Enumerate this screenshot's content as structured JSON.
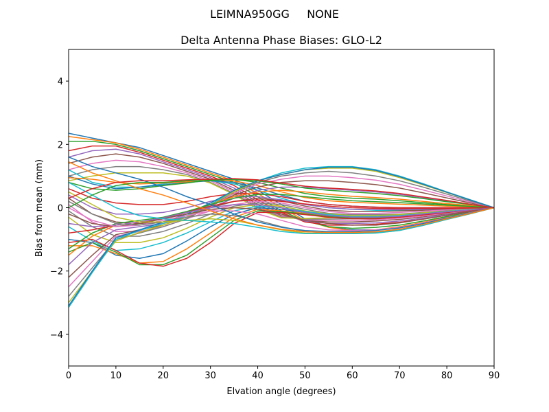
{
  "figure": {
    "suptitle": "LEIMNA950GG     NONE"
  },
  "chart_data": {
    "type": "line",
    "title": "Delta Antenna Phase Biases: GLO-L2",
    "xlabel": "Elvation angle (degrees)",
    "ylabel": "Bias from mean (mm)",
    "xlim": [
      0,
      90
    ],
    "ylim": [
      -5,
      5
    ],
    "xticks": [
      0,
      10,
      20,
      30,
      40,
      50,
      60,
      70,
      80,
      90
    ],
    "yticks": [
      -4,
      -2,
      0,
      2,
      4
    ],
    "xtick_labels": [
      "0",
      "10",
      "20",
      "30",
      "40",
      "50",
      "60",
      "70",
      "80",
      "90"
    ],
    "ytick_labels": [
      "−4",
      "−2",
      "0",
      "2",
      "4"
    ],
    "grid": false,
    "legend": "none",
    "x": [
      0,
      5,
      10,
      15,
      20,
      25,
      30,
      35,
      40,
      45,
      50,
      55,
      60,
      65,
      70,
      75,
      80,
      85,
      90
    ],
    "series": [
      {
        "values": [
          2.35,
          2.2,
          2.05,
          1.9,
          1.65,
          1.4,
          1.15,
          0.9,
          0.55,
          0.1,
          -0.35,
          -0.6,
          -0.7,
          -0.7,
          -0.62,
          -0.48,
          -0.32,
          -0.16,
          0
        ]
      },
      {
        "values": [
          2.25,
          2.15,
          2.05,
          1.85,
          1.6,
          1.35,
          1.1,
          0.85,
          0.45,
          0.0,
          -0.4,
          -0.62,
          -0.72,
          -0.7,
          -0.6,
          -0.46,
          -0.3,
          -0.15,
          0
        ]
      },
      {
        "values": [
          2.1,
          2.1,
          2.0,
          1.8,
          1.55,
          1.3,
          1.05,
          0.8,
          0.35,
          -0.1,
          -0.42,
          -0.6,
          -0.65,
          -0.62,
          -0.55,
          -0.42,
          -0.28,
          -0.14,
          0
        ]
      },
      {
        "values": [
          1.8,
          1.95,
          1.95,
          1.75,
          1.5,
          1.25,
          1.0,
          0.7,
          0.25,
          -0.15,
          -0.45,
          -0.55,
          -0.55,
          -0.52,
          -0.46,
          -0.36,
          -0.24,
          -0.12,
          0
        ]
      },
      {
        "values": [
          1.6,
          1.8,
          1.85,
          1.7,
          1.45,
          1.2,
          0.95,
          0.62,
          0.18,
          -0.2,
          -0.42,
          -0.5,
          -0.5,
          -0.48,
          -0.42,
          -0.33,
          -0.22,
          -0.11,
          0
        ]
      },
      {
        "values": [
          1.4,
          1.6,
          1.7,
          1.6,
          1.4,
          1.15,
          0.9,
          0.55,
          0.1,
          -0.25,
          -0.4,
          -0.45,
          -0.45,
          -0.42,
          -0.37,
          -0.29,
          -0.19,
          -0.1,
          0
        ]
      },
      {
        "values": [
          1.2,
          1.4,
          1.5,
          1.45,
          1.3,
          1.1,
          0.85,
          0.5,
          0.05,
          -0.28,
          -0.38,
          -0.4,
          -0.4,
          -0.38,
          -0.33,
          -0.26,
          -0.17,
          -0.08,
          0
        ]
      },
      {
        "values": [
          1.0,
          1.2,
          1.3,
          1.3,
          1.2,
          1.05,
          0.8,
          0.45,
          0.0,
          -0.3,
          -0.36,
          -0.36,
          -0.35,
          -0.33,
          -0.29,
          -0.22,
          -0.15,
          -0.07,
          0
        ]
      },
      {
        "values": [
          0.85,
          1.0,
          1.1,
          1.1,
          1.1,
          1.0,
          0.78,
          0.42,
          -0.05,
          -0.32,
          -0.34,
          -0.32,
          -0.3,
          -0.28,
          -0.25,
          -0.19,
          -0.13,
          -0.06,
          0
        ]
      },
      {
        "values": [
          1.2,
          0.8,
          0.65,
          0.65,
          0.75,
          0.85,
          0.85,
          0.75,
          0.55,
          0.3,
          0.1,
          0.0,
          -0.05,
          -0.08,
          -0.08,
          -0.06,
          -0.04,
          -0.02,
          0
        ]
      },
      {
        "values": [
          1.0,
          0.75,
          0.6,
          0.65,
          0.72,
          0.8,
          0.85,
          0.8,
          0.62,
          0.4,
          0.2,
          0.1,
          0.05,
          0.02,
          0.0,
          0.0,
          0.0,
          0.0,
          0
        ]
      },
      {
        "values": [
          0.95,
          0.9,
          0.8,
          0.75,
          0.78,
          0.82,
          0.88,
          0.85,
          0.7,
          0.5,
          0.32,
          0.22,
          0.17,
          0.14,
          0.11,
          0.08,
          0.05,
          0.03,
          0
        ]
      },
      {
        "values": [
          0.8,
          0.6,
          0.55,
          0.6,
          0.7,
          0.78,
          0.88,
          0.9,
          0.8,
          0.62,
          0.45,
          0.35,
          0.3,
          0.27,
          0.22,
          0.16,
          0.1,
          0.05,
          0
        ]
      },
      {
        "values": [
          0.6,
          0.3,
          0.15,
          0.1,
          0.1,
          0.2,
          0.35,
          0.45,
          0.45,
          0.35,
          0.2,
          0.1,
          0.05,
          0.02,
          0.0,
          0.0,
          0.0,
          0.0,
          0
        ]
      },
      {
        "values": [
          0.4,
          0.0,
          -0.2,
          -0.2,
          -0.15,
          0.0,
          0.2,
          0.35,
          0.35,
          0.25,
          0.1,
          0.0,
          -0.05,
          -0.06,
          -0.06,
          -0.05,
          -0.03,
          -0.02,
          0
        ]
      },
      {
        "values": [
          0.3,
          -0.2,
          -0.45,
          -0.5,
          -0.45,
          -0.25,
          0.0,
          0.2,
          0.3,
          0.22,
          0.05,
          -0.08,
          -0.12,
          -0.12,
          -0.1,
          -0.08,
          -0.05,
          -0.03,
          0
        ]
      },
      {
        "values": [
          0.1,
          -0.45,
          -0.75,
          -0.75,
          -0.6,
          -0.35,
          -0.1,
          0.1,
          0.2,
          0.15,
          0.0,
          -0.12,
          -0.18,
          -0.18,
          -0.15,
          -0.11,
          -0.07,
          -0.04,
          0
        ]
      },
      {
        "values": [
          -0.1,
          -0.6,
          -0.9,
          -0.9,
          -0.75,
          -0.5,
          -0.2,
          0.05,
          0.15,
          0.1,
          -0.05,
          -0.18,
          -0.22,
          -0.22,
          -0.2,
          -0.15,
          -0.1,
          -0.05,
          0
        ]
      },
      {
        "values": [
          -0.3,
          -0.85,
          -1.1,
          -1.1,
          -0.95,
          -0.65,
          -0.3,
          0.0,
          0.1,
          0.05,
          -0.1,
          -0.2,
          -0.25,
          -0.25,
          -0.22,
          -0.16,
          -0.11,
          -0.05,
          0
        ]
      },
      {
        "values": [
          -0.6,
          -1.05,
          -1.35,
          -1.3,
          -1.1,
          -0.8,
          -0.45,
          -0.1,
          0.05,
          0.0,
          -0.12,
          -0.22,
          -0.28,
          -0.28,
          -0.25,
          -0.19,
          -0.12,
          -0.06,
          0
        ]
      },
      {
        "values": [
          -1.0,
          -1.1,
          -1.5,
          -1.6,
          -1.45,
          -1.05,
          -0.6,
          -0.2,
          0.0,
          -0.05,
          -0.15,
          -0.25,
          -0.3,
          -0.3,
          -0.27,
          -0.2,
          -0.13,
          -0.07,
          0
        ]
      },
      {
        "values": [
          -1.2,
          -1.2,
          -1.45,
          -1.75,
          -1.7,
          -1.3,
          -0.8,
          -0.3,
          -0.05,
          -0.1,
          -0.18,
          -0.27,
          -0.32,
          -0.32,
          -0.28,
          -0.21,
          -0.14,
          -0.07,
          0
        ]
      },
      {
        "values": [
          -1.4,
          -1.1,
          -1.4,
          -1.8,
          -1.8,
          -1.5,
          -0.95,
          -0.4,
          -0.1,
          -0.12,
          -0.2,
          -0.28,
          -0.33,
          -0.33,
          -0.29,
          -0.22,
          -0.15,
          -0.07,
          0
        ]
      },
      {
        "values": [
          -1.1,
          -1.0,
          -1.35,
          -1.75,
          -1.85,
          -1.6,
          -1.1,
          -0.5,
          -0.15,
          -0.15,
          -0.22,
          -0.3,
          -0.35,
          -0.35,
          -0.3,
          -0.23,
          -0.15,
          -0.08,
          0
        ]
      },
      {
        "values": [
          -1.8,
          -1.1,
          -0.7,
          -0.6,
          -0.5,
          -0.3,
          0.0,
          0.3,
          0.55,
          0.65,
          0.65,
          0.6,
          0.55,
          0.5,
          0.42,
          0.32,
          0.21,
          0.1,
          0
        ]
      },
      {
        "values": [
          -2.2,
          -1.5,
          -0.85,
          -0.7,
          -0.55,
          -0.3,
          0.05,
          0.4,
          0.65,
          0.8,
          0.85,
          0.85,
          0.8,
          0.73,
          0.62,
          0.47,
          0.31,
          0.15,
          0
        ]
      },
      {
        "values": [
          -2.5,
          -1.7,
          -0.9,
          -0.75,
          -0.6,
          -0.35,
          0.05,
          0.45,
          0.75,
          0.9,
          1.0,
          1.0,
          0.95,
          0.87,
          0.74,
          0.56,
          0.37,
          0.18,
          0
        ]
      },
      {
        "values": [
          -2.8,
          -1.9,
          -1.0,
          -0.8,
          -0.6,
          -0.35,
          0.05,
          0.5,
          0.8,
          1.0,
          1.1,
          1.15,
          1.1,
          1.0,
          0.85,
          0.65,
          0.43,
          0.21,
          0
        ]
      },
      {
        "values": [
          -3.0,
          -2.0,
          -1.05,
          -0.78,
          -0.55,
          -0.3,
          0.1,
          0.5,
          0.85,
          1.05,
          1.2,
          1.25,
          1.25,
          1.15,
          0.95,
          0.72,
          0.48,
          0.24,
          0
        ]
      },
      {
        "values": [
          -3.15,
          -2.05,
          -1.0,
          -0.72,
          -0.5,
          -0.25,
          0.1,
          0.55,
          0.85,
          1.1,
          1.25,
          1.3,
          1.3,
          1.2,
          1.0,
          0.76,
          0.5,
          0.25,
          0
        ]
      },
      {
        "values": [
          -3.1,
          -2.0,
          -0.95,
          -0.7,
          -0.45,
          -0.2,
          0.15,
          0.55,
          0.85,
          1.05,
          1.2,
          1.28,
          1.28,
          1.18,
          0.98,
          0.74,
          0.49,
          0.24,
          0
        ]
      },
      {
        "values": [
          -1.5,
          -0.9,
          -0.55,
          -0.45,
          -0.35,
          -0.15,
          0.1,
          0.35,
          0.5,
          0.55,
          0.5,
          0.42,
          0.36,
          0.32,
          0.27,
          0.2,
          0.13,
          0.07,
          0
        ]
      },
      {
        "values": [
          -1.3,
          -0.8,
          -0.5,
          -0.4,
          -0.3,
          -0.12,
          0.1,
          0.3,
          0.42,
          0.42,
          0.35,
          0.28,
          0.22,
          0.19,
          0.16,
          0.12,
          0.08,
          0.04,
          0
        ]
      },
      {
        "values": [
          -0.8,
          -0.7,
          -0.55,
          -0.45,
          -0.35,
          -0.15,
          0.05,
          0.2,
          0.25,
          0.2,
          0.12,
          0.05,
          0.0,
          -0.02,
          -0.03,
          -0.02,
          -0.02,
          -0.01,
          0
        ]
      },
      {
        "values": [
          -0.5,
          -0.6,
          -0.55,
          -0.45,
          -0.32,
          -0.15,
          0.0,
          0.1,
          0.1,
          0.0,
          -0.15,
          -0.25,
          -0.3,
          -0.3,
          -0.27,
          -0.2,
          -0.13,
          -0.07,
          0
        ]
      },
      {
        "values": [
          -0.2,
          -0.5,
          -0.6,
          -0.5,
          -0.35,
          -0.2,
          -0.05,
          0.0,
          -0.05,
          -0.2,
          -0.4,
          -0.5,
          -0.55,
          -0.55,
          -0.48,
          -0.36,
          -0.24,
          -0.12,
          0
        ]
      },
      {
        "values": [
          0.0,
          -0.4,
          -0.6,
          -0.55,
          -0.4,
          -0.25,
          -0.1,
          -0.1,
          -0.2,
          -0.4,
          -0.6,
          -0.7,
          -0.72,
          -0.7,
          -0.62,
          -0.48,
          -0.32,
          -0.16,
          0
        ]
      },
      {
        "values": [
          0.2,
          -0.2,
          -0.5,
          -0.55,
          -0.45,
          -0.3,
          -0.2,
          -0.25,
          -0.4,
          -0.6,
          -0.75,
          -0.8,
          -0.8,
          -0.78,
          -0.7,
          -0.54,
          -0.36,
          -0.18,
          0
        ]
      },
      {
        "values": [
          0.5,
          0.1,
          -0.3,
          -0.45,
          -0.45,
          -0.4,
          -0.35,
          -0.4,
          -0.55,
          -0.7,
          -0.8,
          -0.82,
          -0.82,
          -0.8,
          -0.72,
          -0.56,
          -0.37,
          -0.19,
          0
        ]
      },
      {
        "values": [
          0.8,
          0.4,
          0.0,
          -0.25,
          -0.35,
          -0.4,
          -0.45,
          -0.5,
          -0.62,
          -0.75,
          -0.82,
          -0.82,
          -0.82,
          -0.8,
          -0.72,
          -0.56,
          -0.37,
          -0.19,
          0
        ]
      },
      {
        "values": [
          1.6,
          1.3,
          1.1,
          0.9,
          0.65,
          0.35,
          0.1,
          -0.2,
          -0.45,
          -0.62,
          -0.72,
          -0.75,
          -0.75,
          -0.72,
          -0.64,
          -0.5,
          -0.33,
          -0.17,
          0
        ]
      },
      {
        "values": [
          1.45,
          1.1,
          0.85,
          0.6,
          0.4,
          0.15,
          -0.1,
          -0.35,
          -0.55,
          -0.68,
          -0.76,
          -0.78,
          -0.78,
          -0.76,
          -0.68,
          -0.53,
          -0.35,
          -0.18,
          0
        ]
      },
      {
        "values": [
          0.0,
          0.4,
          0.7,
          0.8,
          0.8,
          0.85,
          0.85,
          0.9,
          0.85,
          0.75,
          0.62,
          0.55,
          0.5,
          0.45,
          0.38,
          0.29,
          0.19,
          0.1,
          0
        ]
      },
      {
        "values": [
          0.3,
          0.6,
          0.8,
          0.85,
          0.85,
          0.88,
          0.9,
          0.92,
          0.88,
          0.78,
          0.68,
          0.62,
          0.58,
          0.53,
          0.45,
          0.34,
          0.23,
          0.11,
          0
        ]
      }
    ]
  },
  "colors": {
    "palette": [
      "#1f77b4",
      "#ff7f0e",
      "#2ca02c",
      "#d62728",
      "#9467bd",
      "#8c564b",
      "#e377c2",
      "#7f7f7f",
      "#bcbd22",
      "#17becf"
    ]
  }
}
